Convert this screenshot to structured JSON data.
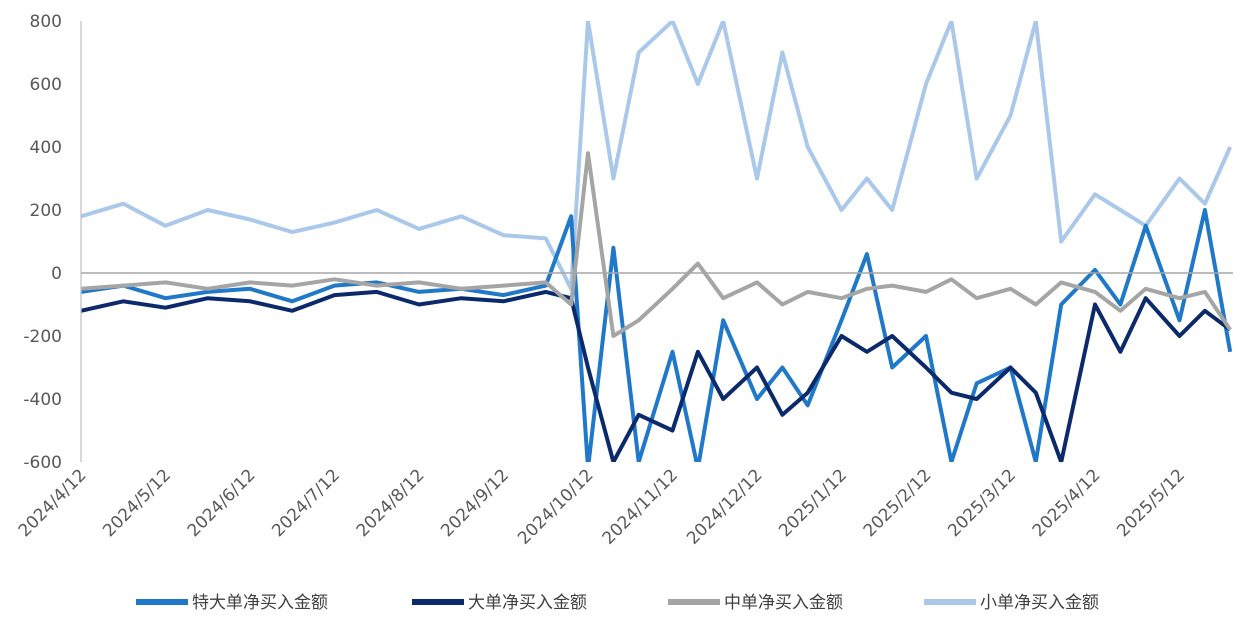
{
  "chart_data": {
    "type": "line",
    "title": "",
    "xlabel": "",
    "ylabel": "",
    "ylim": [
      -600,
      800
    ],
    "y_ticks": [
      "800",
      "600",
      "400",
      "200",
      "0",
      "-200",
      "-400",
      "-600"
    ],
    "x_ticks": [
      "2024/4/12",
      "2024/5/12",
      "2024/6/12",
      "2024/7/12",
      "2024/8/12",
      "2024/9/12",
      "2024/10/12",
      "2024/11/12",
      "2024/12/12",
      "2025/1/12",
      "2025/2/12",
      "2025/3/12",
      "2025/4/12",
      "2025/5/12"
    ],
    "grid": false,
    "legend_position": "bottom",
    "colors": {
      "特大单净买入金额": "#1f78c8",
      "大单净买入金额": "#0b2a6b",
      "中单净买入金额": "#a5a5a5",
      "小单净买入金额": "#a9c8ea"
    },
    "x_months": [
      0,
      0.5,
      1,
      1.5,
      2,
      2.5,
      3,
      3.5,
      4,
      4.5,
      5,
      5.5,
      5.8,
      6.0,
      6.3,
      6.6,
      7,
      7.3,
      7.6,
      8,
      8.3,
      8.6,
      9,
      9.3,
      9.6,
      10,
      10.3,
      10.6,
      11,
      11.3,
      11.6,
      12,
      12.3,
      12.6,
      13,
      13.3,
      13.6
    ],
    "series": [
      {
        "name": "特大单净买入金额",
        "values": [
          -60,
          -40,
          -80,
          -60,
          -50,
          -90,
          -40,
          -30,
          -60,
          -50,
          -70,
          -40,
          180,
          -620,
          80,
          -600,
          -250,
          -620,
          -150,
          -400,
          -300,
          -420,
          -150,
          60,
          -300,
          -200,
          -600,
          -350,
          -300,
          -600,
          -100,
          10,
          -100,
          150,
          -150,
          200,
          -250
        ]
      },
      {
        "name": "大单净买入金额",
        "values": [
          -120,
          -90,
          -110,
          -80,
          -90,
          -120,
          -70,
          -60,
          -100,
          -80,
          -90,
          -60,
          -80,
          -300,
          -600,
          -450,
          -500,
          -250,
          -400,
          -300,
          -450,
          -380,
          -200,
          -250,
          -200,
          -300,
          -380,
          -400,
          -300,
          -380,
          -600,
          -100,
          -250,
          -80,
          -200,
          -120,
          -180
        ]
      },
      {
        "name": "中单净买入金额",
        "values": [
          -50,
          -40,
          -30,
          -50,
          -30,
          -40,
          -20,
          -40,
          -30,
          -50,
          -40,
          -30,
          -100,
          380,
          -200,
          -150,
          -50,
          30,
          -80,
          -30,
          -100,
          -60,
          -80,
          -50,
          -40,
          -60,
          -20,
          -80,
          -50,
          -100,
          -30,
          -60,
          -120,
          -50,
          -80,
          -60,
          -180
        ]
      },
      {
        "name": "小单净买入金额",
        "values": [
          180,
          220,
          150,
          200,
          170,
          130,
          160,
          200,
          140,
          180,
          120,
          110,
          -50,
          800,
          300,
          700,
          800,
          600,
          800,
          300,
          700,
          400,
          200,
          300,
          200,
          600,
          800,
          300,
          500,
          800,
          100,
          250,
          200,
          150,
          300,
          220,
          400
        ]
      }
    ]
  },
  "legend": {
    "item1": "特大单净买入金额",
    "item2": "大单净买入金额",
    "item3": "中单净买入金额",
    "item4": "小单净买入金额"
  }
}
